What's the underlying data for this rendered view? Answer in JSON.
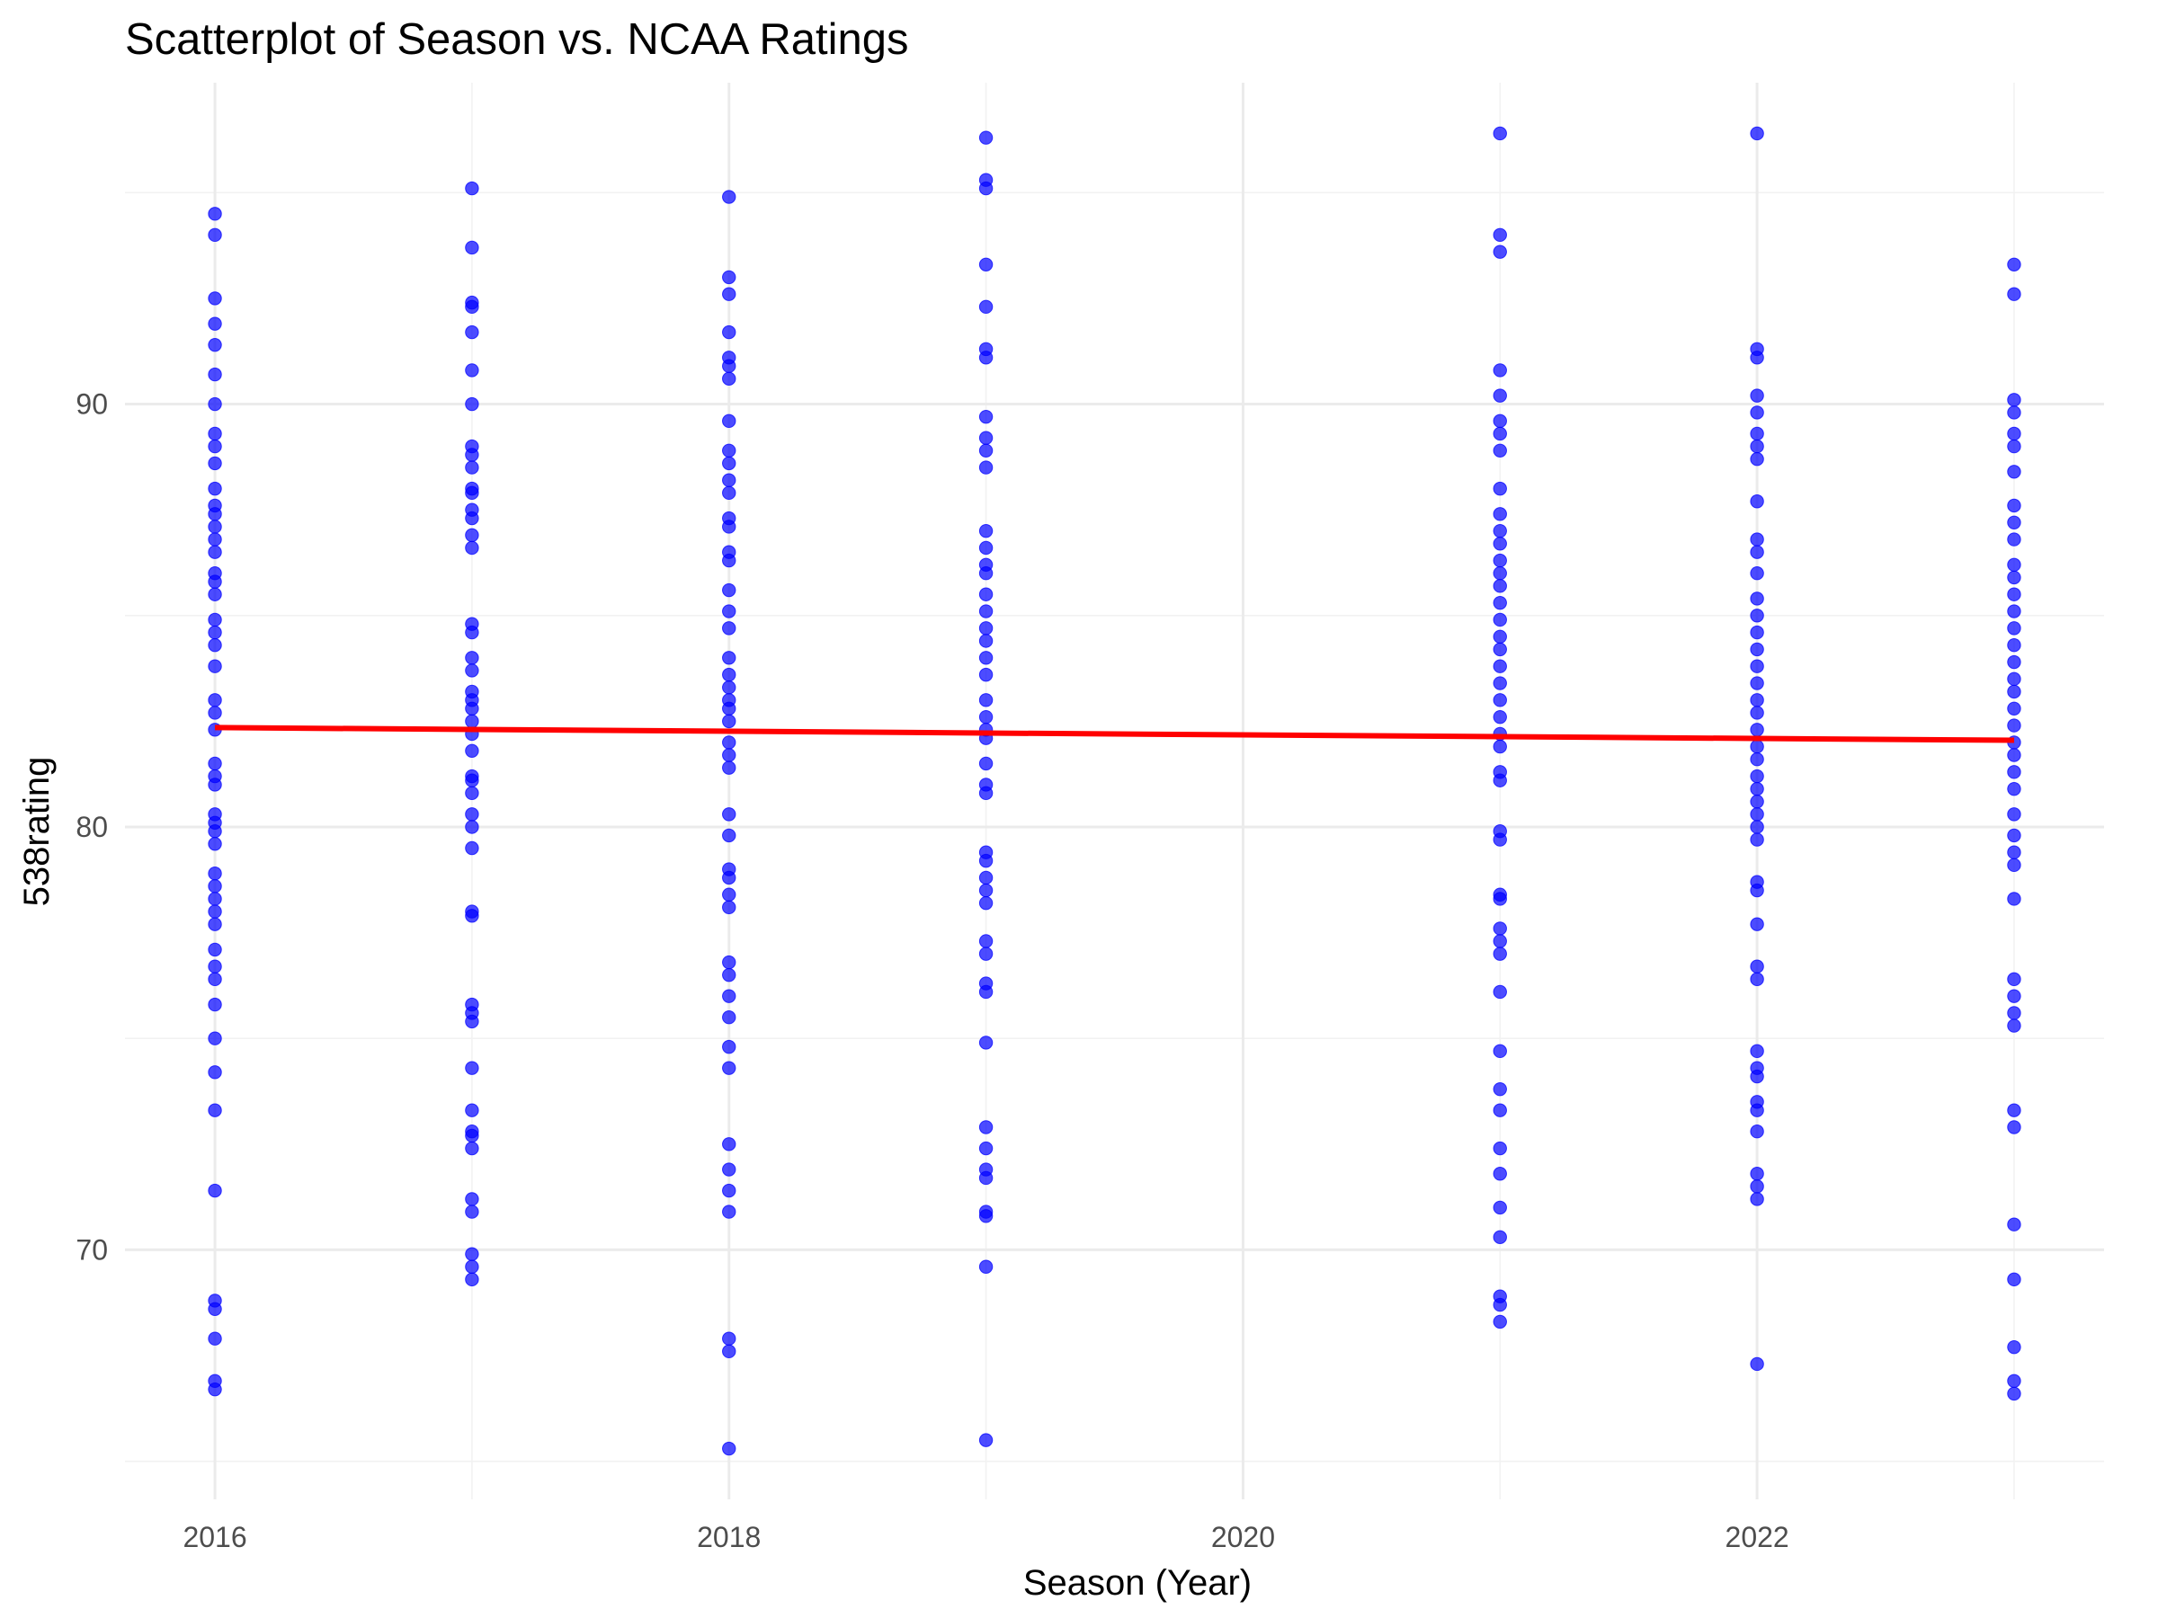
{
  "chart_data": {
    "type": "scatter",
    "title": "Scatterplot of Season vs. NCAA Ratings",
    "xlabel": "Season (Year)",
    "ylabel": "538rating",
    "xlim": [
      2015.65,
      2023.35
    ],
    "ylim": [
      64.1,
      97.6
    ],
    "x_ticks": [
      2016,
      2018,
      2020,
      2022
    ],
    "x_tick_labels": [
      "2016",
      "2018",
      "2020",
      "2022"
    ],
    "x_minor_ticks": [
      2017,
      2019,
      2021,
      2023
    ],
    "y_ticks": [
      70,
      80,
      90
    ],
    "y_tick_labels": [
      "70",
      "80",
      "90"
    ],
    "y_minor_ticks": [
      65,
      75,
      85,
      95
    ],
    "grid": true,
    "legend": "none",
    "series": [
      {
        "color": "#0000ff",
        "points": [
          {
            "season": 2016,
            "ratings": [
              94.5,
              94.0,
              92.5,
              91.9,
              91.4,
              90.7,
              90.0,
              89.3,
              89.0,
              88.6,
              88.0,
              87.6,
              87.4,
              87.1,
              86.8,
              86.5,
              86.0,
              85.8,
              85.5,
              84.9,
              84.6,
              84.3,
              83.8,
              83.0,
              82.7,
              82.3,
              81.5,
              81.2,
              81.0,
              80.3,
              80.1,
              79.9,
              79.6,
              78.9,
              78.6,
              78.3,
              78.0,
              77.7,
              77.1,
              76.7,
              76.4,
              75.8,
              75.0,
              74.2,
              73.3,
              71.4,
              68.8,
              68.6,
              67.9,
              66.9,
              66.7
            ]
          },
          {
            "season": 2017,
            "ratings": [
              95.1,
              93.7,
              92.4,
              92.3,
              91.7,
              90.8,
              90.0,
              89.0,
              88.8,
              88.5,
              88.0,
              87.9,
              87.5,
              87.3,
              86.9,
              86.6,
              84.8,
              84.6,
              84.0,
              83.7,
              83.2,
              83.0,
              82.8,
              82.5,
              82.2,
              81.8,
              81.2,
              81.1,
              80.8,
              80.3,
              80.0,
              79.5,
              78.0,
              77.9,
              75.8,
              75.6,
              75.4,
              74.3,
              73.3,
              72.8,
              72.7,
              72.4,
              71.2,
              70.9,
              69.9,
              69.6,
              69.3
            ]
          },
          {
            "season": 2018,
            "ratings": [
              94.9,
              93.0,
              92.6,
              91.7,
              91.1,
              90.9,
              90.6,
              89.6,
              88.9,
              88.6,
              88.2,
              87.9,
              87.3,
              87.1,
              86.5,
              86.3,
              85.6,
              85.1,
              84.7,
              84.0,
              83.6,
              83.3,
              83.0,
              82.8,
              82.5,
              82.0,
              81.7,
              81.4,
              80.3,
              79.8,
              79.0,
              78.8,
              78.4,
              78.1,
              76.8,
              76.5,
              76.0,
              75.5,
              74.8,
              74.3,
              72.5,
              71.9,
              71.4,
              70.9,
              67.9,
              67.6,
              65.3
            ]
          },
          {
            "season": 2019,
            "ratings": [
              96.3,
              95.3,
              95.1,
              93.3,
              92.3,
              91.3,
              91.1,
              89.7,
              89.2,
              88.9,
              88.5,
              87.0,
              86.6,
              86.2,
              86.0,
              85.5,
              85.1,
              84.7,
              84.4,
              84.0,
              83.6,
              83.0,
              82.6,
              82.3,
              82.1,
              81.5,
              81.0,
              80.8,
              79.4,
              79.2,
              78.8,
              78.5,
              78.2,
              77.3,
              77.0,
              76.3,
              76.1,
              74.9,
              72.9,
              72.4,
              71.9,
              71.7,
              70.9,
              70.8,
              69.6,
              65.5
            ]
          },
          {
            "season": 2021,
            "ratings": [
              96.4,
              94.0,
              93.6,
              90.8,
              90.2,
              89.6,
              89.3,
              88.9,
              88.0,
              87.4,
              87.0,
              86.7,
              86.3,
              86.0,
              85.7,
              85.3,
              84.9,
              84.5,
              84.2,
              83.8,
              83.4,
              83.0,
              82.6,
              82.2,
              81.9,
              81.3,
              81.1,
              79.9,
              79.7,
              78.4,
              78.3,
              77.6,
              77.3,
              77.0,
              76.1,
              74.7,
              73.8,
              73.3,
              72.4,
              71.8,
              71.0,
              70.3,
              68.9,
              68.7,
              68.3
            ]
          },
          {
            "season": 2022,
            "ratings": [
              96.4,
              91.3,
              91.1,
              90.2,
              89.8,
              89.3,
              89.0,
              88.7,
              87.7,
              86.8,
              86.5,
              86.0,
              85.4,
              85.0,
              84.6,
              84.2,
              83.8,
              83.4,
              83.0,
              82.7,
              82.3,
              81.9,
              81.6,
              81.2,
              80.9,
              80.6,
              80.3,
              80.0,
              79.7,
              78.7,
              78.5,
              77.7,
              76.7,
              76.4,
              74.7,
              74.3,
              74.1,
              73.5,
              73.3,
              72.8,
              71.8,
              71.5,
              71.2,
              67.3
            ]
          },
          {
            "season": 2023,
            "ratings": [
              93.3,
              92.6,
              90.1,
              89.8,
              89.3,
              89.0,
              88.4,
              87.6,
              87.2,
              86.8,
              86.2,
              85.9,
              85.5,
              85.1,
              84.7,
              84.3,
              83.9,
              83.5,
              83.2,
              82.8,
              82.4,
              82.0,
              81.7,
              81.3,
              80.9,
              80.3,
              79.8,
              79.4,
              79.1,
              78.3,
              76.4,
              76.0,
              75.6,
              75.3,
              73.3,
              72.9,
              70.6,
              69.3,
              67.7,
              66.9,
              66.6
            ]
          }
        ]
      },
      {
        "type": "line",
        "color": "#ff0000",
        "x": [
          2016,
          2023
        ],
        "y": [
          82.35,
          82.05
        ]
      }
    ]
  }
}
